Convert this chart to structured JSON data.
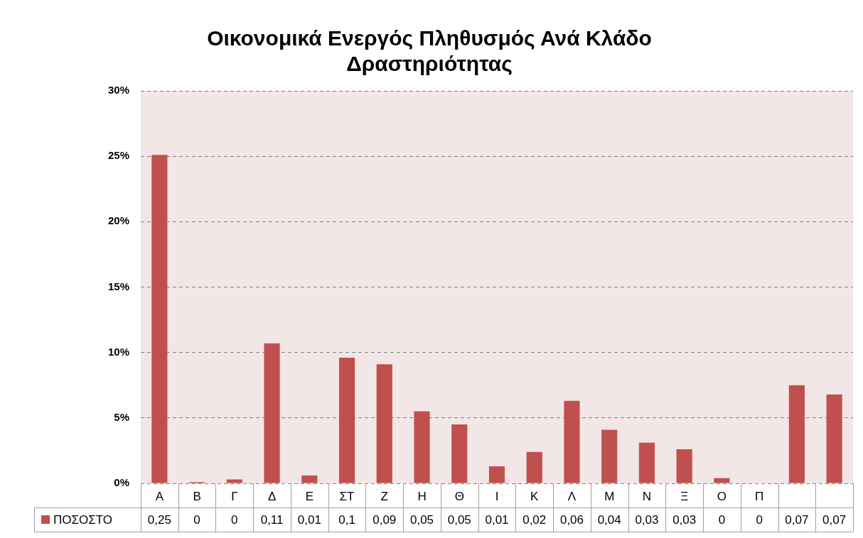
{
  "chart_data": {
    "type": "bar",
    "title": "Οικονομικά Ενεργός Πληθυσμός Ανά Κλάδο Δραστηριότητας",
    "categories": [
      "Α",
      "Β",
      "Γ",
      "Δ",
      "Ε",
      "ΣΤ",
      "Ζ",
      "Η",
      "Θ",
      "Ι",
      "Κ",
      "Λ",
      "Μ",
      "Ν",
      "Ξ",
      "Ο",
      "Π",
      null,
      null
    ],
    "series": [
      {
        "name": "ΠΟΣΟΣΤΟ",
        "color": "#c0504d",
        "values": [
          0.251,
          0.001,
          0.003,
          0.107,
          0.006,
          0.096,
          0.091,
          0.055,
          0.045,
          0.013,
          0.024,
          0.063,
          0.041,
          0.031,
          0.026,
          0.004,
          0,
          0.075,
          0.068
        ],
        "value_labels": [
          "0,25",
          "0",
          "0",
          "0,11",
          "0,01",
          "0,1",
          "0,09",
          "0,05",
          "0,05",
          "0,01",
          "0,02",
          "0,06",
          "0,04",
          "0,03",
          "0,03",
          "0",
          "0",
          "0,07",
          "0,07"
        ]
      }
    ],
    "ylim": [
      0,
      0.3
    ],
    "yticks": [
      {
        "value": 0,
        "label": "0%"
      },
      {
        "value": 0.05,
        "label": "5%"
      },
      {
        "value": 0.1,
        "label": "10%"
      },
      {
        "value": 0.15,
        "label": "15%"
      },
      {
        "value": 0.2,
        "label": "20%"
      },
      {
        "value": 0.25,
        "label": "25%"
      },
      {
        "value": 0.3,
        "label": "30%"
      }
    ],
    "grid": "y",
    "legend": "bottom"
  }
}
